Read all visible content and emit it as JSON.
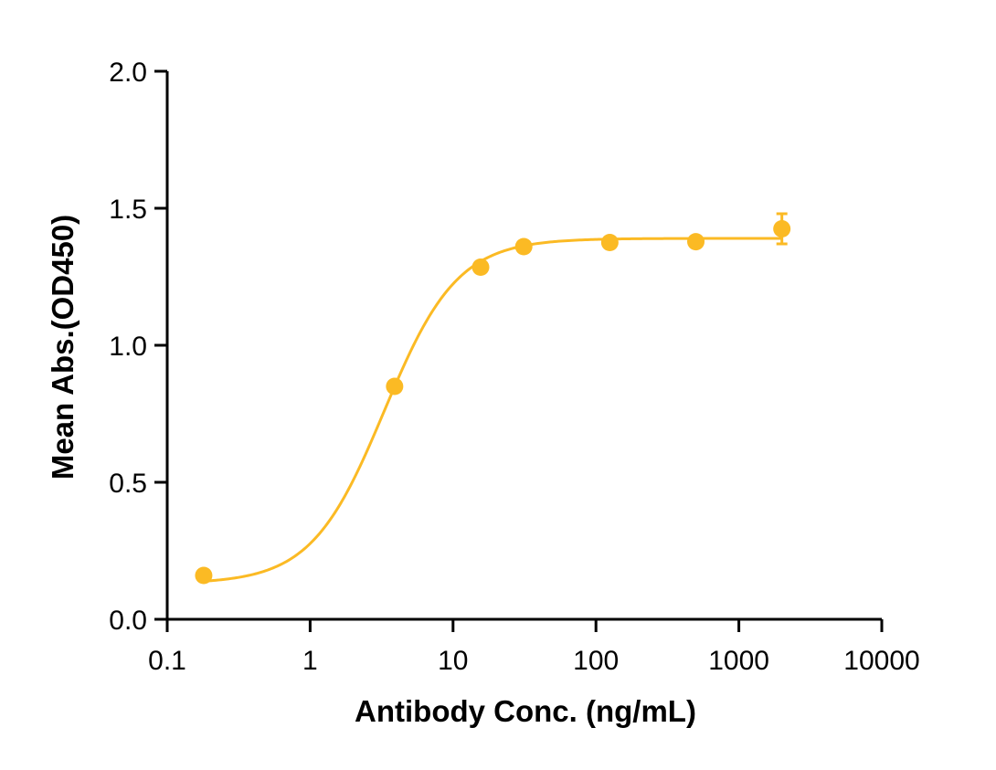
{
  "chart_data": {
    "type": "scatter",
    "title": "",
    "xlabel": "Antibody Conc. (ng/mL)",
    "ylabel": "Mean Abs.(OD450)",
    "x_scale": "log",
    "xlim": [
      0.1,
      10000
    ],
    "ylim": [
      0.0,
      2.0
    ],
    "x_ticks": [
      "0.1",
      "1",
      "10",
      "100",
      "1000",
      "10000"
    ],
    "x_tick_values": [
      0.1,
      1,
      10,
      100,
      1000,
      10000
    ],
    "y_ticks": [
      "0.0",
      "0.5",
      "1.0",
      "1.5",
      "2.0"
    ],
    "y_tick_values": [
      0.0,
      0.5,
      1.0,
      1.5,
      2.0
    ],
    "grid": false,
    "color": "#FBBA24",
    "series": [
      {
        "x": [
          0.18,
          3.9,
          15.6,
          31.25,
          125,
          500,
          2000
        ],
        "y": [
          0.16,
          0.85,
          1.285,
          1.36,
          1.375,
          1.378,
          1.425
        ],
        "error": [
          0,
          0,
          0,
          0,
          0,
          0,
          0.055
        ]
      }
    ],
    "fit": {
      "model": "4PL",
      "bottom": 0.13,
      "top": 1.39,
      "ec50": 3.3,
      "hill": 1.7
    }
  }
}
